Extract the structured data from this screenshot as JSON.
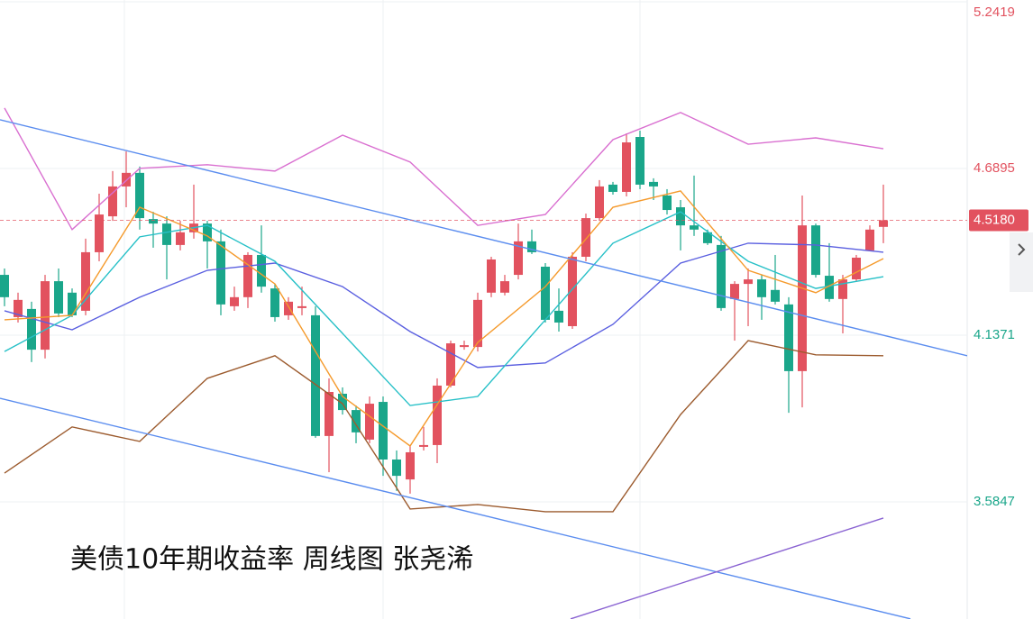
{
  "chart_data": {
    "type": "candlestick",
    "title": "美债10年期收益率 周线图 张尧浠",
    "ylim": [
      3.1965,
      5.2479
    ],
    "yticks": [
      5.2419,
      4.6895,
      4.1371,
      3.5847
    ],
    "up_color": "#e2525f",
    "down_color": "#1aa68a",
    "grid": true,
    "last_price": {
      "value": 4.518,
      "label": "4.5180"
    },
    "candles": {
      "open": [
        4.337,
        4.197,
        4.224,
        4.089,
        4.316,
        4.278,
        4.218,
        4.412,
        4.531,
        4.63,
        4.675,
        4.522,
        4.507,
        4.436,
        4.478,
        4.507,
        4.448,
        4.233,
        4.263,
        4.403,
        4.292,
        4.203,
        4.227,
        4.203,
        3.803,
        3.943,
        3.889,
        3.791,
        3.916,
        3.725,
        3.659,
        3.767,
        3.773,
        3.97,
        4.098,
        4.098,
        4.278,
        4.278,
        4.337,
        4.448,
        4.364,
        4.218,
        4.167,
        4.397,
        4.525,
        4.636,
        4.612,
        4.794,
        4.645,
        4.6,
        4.561,
        4.501,
        4.478,
        4.436,
        4.257,
        4.307,
        4.322,
        4.287,
        4.239,
        4.018,
        4.501,
        4.334,
        4.257,
        4.322,
        4.418,
        4.496
      ],
      "high": [
        4.358,
        4.278,
        4.248,
        4.337,
        4.358,
        4.292,
        4.457,
        4.606,
        4.681,
        4.746,
        4.696,
        4.546,
        4.531,
        4.516,
        4.636,
        4.516,
        4.487,
        4.298,
        4.412,
        4.501,
        4.307,
        4.263,
        4.298,
        4.233,
        3.994,
        3.964,
        3.904,
        3.934,
        3.934,
        3.755,
        3.77,
        3.833,
        3.994,
        4.119,
        4.119,
        4.278,
        4.397,
        4.337,
        4.507,
        4.487,
        4.376,
        4.292,
        4.412,
        4.54,
        4.651,
        4.645,
        4.806,
        4.815,
        4.657,
        4.621,
        4.585,
        4.666,
        4.487,
        4.466,
        4.316,
        4.358,
        4.337,
        4.403,
        4.263,
        4.6,
        4.507,
        4.442,
        4.337,
        4.403,
        4.501,
        4.636
      ],
      "low": [
        4.233,
        4.179,
        4.048,
        4.06,
        4.197,
        4.197,
        4.203,
        4.382,
        4.516,
        4.561,
        4.487,
        4.427,
        4.322,
        4.418,
        4.457,
        4.358,
        4.203,
        4.218,
        4.227,
        4.278,
        4.182,
        4.188,
        4.203,
        3.797,
        3.683,
        3.874,
        3.779,
        3.779,
        3.671,
        3.621,
        3.612,
        3.755,
        3.713,
        3.964,
        4.089,
        4.083,
        4.263,
        4.269,
        4.322,
        4.406,
        4.179,
        4.149,
        4.158,
        4.382,
        4.516,
        4.603,
        4.597,
        4.621,
        4.585,
        4.537,
        4.418,
        4.466,
        4.436,
        4.218,
        4.119,
        4.167,
        4.188,
        4.239,
        3.88,
        3.898,
        4.328,
        4.248,
        4.143,
        4.316,
        4.418,
        4.442
      ],
      "close": [
        4.263,
        4.254,
        4.089,
        4.316,
        4.209,
        4.203,
        4.412,
        4.537,
        4.63,
        4.675,
        4.525,
        4.507,
        4.436,
        4.478,
        4.507,
        4.448,
        4.239,
        4.263,
        4.403,
        4.298,
        4.197,
        4.248,
        4.233,
        3.803,
        3.949,
        3.889,
        3.815,
        3.91,
        3.725,
        3.671,
        3.749,
        3.773,
        3.97,
        4.11,
        4.104,
        4.254,
        4.388,
        4.316,
        4.448,
        4.412,
        4.188,
        4.179,
        4.397,
        4.525,
        4.63,
        4.612,
        4.776,
        4.636,
        4.63,
        4.552,
        4.501,
        4.487,
        4.442,
        4.227,
        4.307,
        4.322,
        4.263,
        4.248,
        4.018,
        4.501,
        4.337,
        4.257,
        4.322,
        4.394,
        4.487,
        4.518
      ]
    },
    "series": [
      {
        "color": "#d96fd0",
        "x": [
          0,
          5,
          10,
          15,
          20,
          25,
          30,
          35,
          40,
          45,
          50,
          55,
          60,
          65
        ],
        "values": [
          4.89,
          4.487,
          4.69,
          4.702,
          4.681,
          4.8,
          4.711,
          4.501,
          4.537,
          4.785,
          4.875,
          4.77,
          4.791,
          4.755
        ]
      },
      {
        "color": "#9c5b2e",
        "x": [
          0,
          5,
          10,
          15,
          20,
          25,
          30,
          35,
          40,
          45,
          50,
          55,
          60,
          65
        ],
        "values": [
          3.68,
          3.833,
          3.785,
          3.994,
          4.069,
          3.91,
          3.561,
          3.576,
          3.552,
          3.552,
          3.874,
          4.119,
          4.072,
          4.069
        ]
      },
      {
        "color": "#5a5fe0",
        "x": [
          0,
          5,
          10,
          15,
          20,
          25,
          30,
          35,
          40,
          45,
          50,
          55,
          60,
          65
        ],
        "values": [
          4.218,
          4.155,
          4.263,
          4.352,
          4.376,
          4.298,
          4.149,
          4.03,
          4.045,
          4.173,
          4.376,
          4.442,
          4.436,
          4.412
        ]
      },
      {
        "color": "#26c0c7",
        "x": [
          0,
          5,
          10,
          15,
          20,
          25,
          30,
          35,
          40,
          45,
          50,
          55,
          60,
          65
        ],
        "values": [
          4.083,
          4.203,
          4.463,
          4.501,
          4.382,
          4.143,
          3.904,
          3.934,
          4.188,
          4.442,
          4.546,
          4.382,
          4.292,
          4.331
        ]
      },
      {
        "color": "#f59a2c",
        "x": [
          0,
          5,
          10,
          15,
          20,
          25,
          30,
          35,
          40,
          45,
          50,
          55,
          60,
          65
        ],
        "values": [
          4.188,
          4.203,
          4.561,
          4.466,
          4.307,
          3.934,
          3.77,
          4.113,
          4.298,
          4.561,
          4.615,
          4.352,
          4.278,
          4.391
        ]
      },
      {
        "color": "#5b8def",
        "x": [
          -0.333,
          71.2
        ],
        "values": [
          4.851,
          4.069
        ]
      },
      {
        "color": "#5b8def",
        "x": [
          -0.333,
          67
        ],
        "values": [
          3.928,
          3.197
        ]
      },
      {
        "color": "#8a63d2",
        "x": [
          41.87,
          65
        ],
        "values": [
          3.197,
          3.531
        ]
      }
    ]
  }
}
